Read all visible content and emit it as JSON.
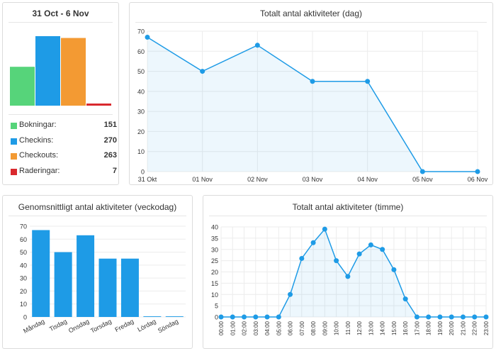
{
  "summary": {
    "title": "31 Oct - 6 Nov",
    "items": [
      {
        "label": "Bokningar:",
        "value": "151",
        "color": "#56d47a"
      },
      {
        "label": "Checkins:",
        "value": "270",
        "color": "#1e9be6"
      },
      {
        "label": "Checkouts:",
        "value": "263",
        "color": "#f39a33"
      },
      {
        "label": "Raderingar:",
        "value": "7",
        "color": "#d9292e"
      }
    ]
  },
  "chart_data": [
    {
      "type": "bar",
      "categories": [
        "Bokningar",
        "Checkins",
        "Checkouts",
        "Raderingar"
      ],
      "values": [
        151,
        270,
        263,
        7
      ],
      "colors": [
        "#56d47a",
        "#1e9be6",
        "#f39a33",
        "#d9292e"
      ],
      "ylim": [
        0,
        270
      ]
    },
    {
      "type": "line",
      "title": "Totalt antal aktiviteter (dag)",
      "categories": [
        "31 Okt",
        "01 Nov",
        "02 Nov",
        "03 Nov",
        "04 Nov",
        "05 Nov",
        "06 Nov"
      ],
      "values": [
        67,
        50,
        63,
        45,
        45,
        0,
        0
      ],
      "ylim": [
        0,
        70
      ],
      "yticks": [
        0,
        10,
        20,
        30,
        40,
        50,
        60,
        70
      ],
      "color": "#1e9be6",
      "grid": true
    },
    {
      "type": "bar",
      "title": "Genomsnittligt antal aktiviteter (veckodag)",
      "categories": [
        "Måndag",
        "Tisdag",
        "Onsdag",
        "Torsdag",
        "Fredag",
        "Lördag",
        "Söndag"
      ],
      "values": [
        67,
        50,
        63,
        45,
        45,
        0.5,
        0.5
      ],
      "ylim": [
        0,
        70
      ],
      "yticks": [
        0,
        10,
        20,
        30,
        40,
        50,
        60,
        70
      ],
      "color": "#1e9be6",
      "grid": true
    },
    {
      "type": "line",
      "title": "Totalt antal aktiviteter (timme)",
      "categories": [
        "00:00",
        "01:00",
        "02:00",
        "03:00",
        "04:00",
        "05:00",
        "06:00",
        "07:00",
        "08:00",
        "09:00",
        "10:00",
        "11:00",
        "12:00",
        "13:00",
        "14:00",
        "15:00",
        "16:00",
        "17:00",
        "18:00",
        "19:00",
        "20:00",
        "21:00",
        "22:00",
        "23:00"
      ],
      "values": [
        0,
        0,
        0,
        0,
        0,
        0,
        10,
        26,
        33,
        39,
        25,
        18,
        28,
        32,
        30,
        21,
        8,
        0,
        0,
        0,
        0,
        0,
        0,
        0
      ],
      "ylim": [
        0,
        40
      ],
      "yticks": [
        0,
        5,
        10,
        15,
        20,
        25,
        30,
        35,
        40
      ],
      "color": "#1e9be6",
      "grid": true
    }
  ]
}
